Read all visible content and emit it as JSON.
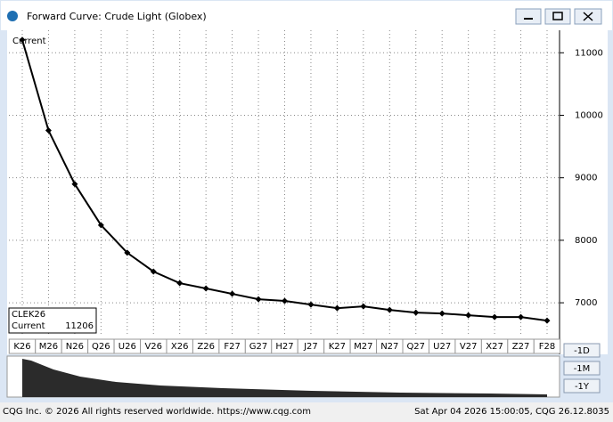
{
  "window": {
    "title": "Forward Curve: Crude Light (Globex)"
  },
  "chart_data": {
    "type": "line",
    "categories": [
      "K26",
      "M26",
      "N26",
      "Q26",
      "U26",
      "V26",
      "X26",
      "Z26",
      "F27",
      "G27",
      "H27",
      "J27",
      "K27",
      "M27",
      "N27",
      "Q27",
      "U27",
      "V27",
      "X27",
      "Z27",
      "F28"
    ],
    "series": [
      {
        "name": "Current",
        "color": "#000000",
        "values": [
          11206,
          9757,
          8900,
          8243,
          7800,
          7500,
          7314,
          7229,
          7143,
          7057,
          7029,
          6971,
          6914,
          6943,
          6886,
          6843,
          6829,
          6800,
          6771,
          6771,
          6714
        ]
      }
    ],
    "ylim": [
      6460,
      11360
    ],
    "yticks": [
      7000,
      8000,
      9000,
      10000,
      11000
    ],
    "grid": true
  },
  "info_box": {
    "symbol": "CLEK26",
    "name": "Current",
    "value": "11206"
  },
  "range_buttons": [
    "-1D",
    "-1M",
    "-1Y"
  ],
  "footer": {
    "left": "CQG Inc. © 2026 All rights reserved worldwide. https://www.cqg.com",
    "right": "Sat Apr 04 2026 15:00:05, CQG 26.12.8035"
  }
}
